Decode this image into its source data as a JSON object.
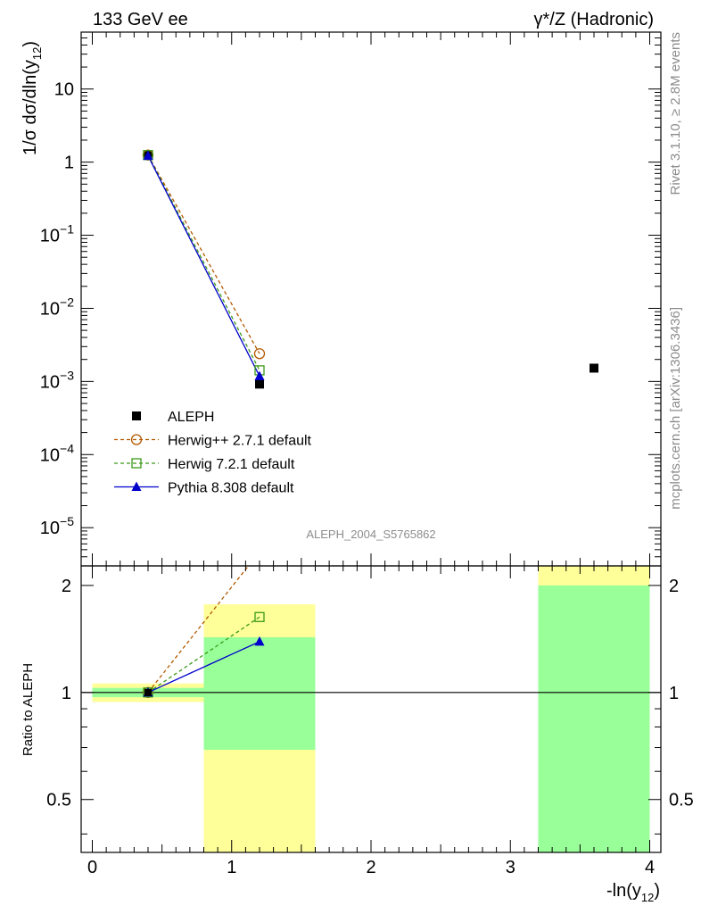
{
  "header": {
    "left": "133 GeV ee",
    "right": "γ*/Z (Hadronic)"
  },
  "side": {
    "rivet": "Rivet 3.1.10, ≥ 2.8M events",
    "mcplots": "mcplots.cern.ch [arXiv:1306.3436]"
  },
  "analysis_id": "ALEPH_2004_S5765862",
  "colors": {
    "aleph": "#000000",
    "herwigpp": "#b35900",
    "herwig7": "#3a9a1a",
    "pythia": "#0000cc",
    "band_inner": "#99ff99",
    "band_outer": "#ffff99"
  },
  "chart_data": [
    {
      "type": "scatter",
      "panel": "main",
      "ylabel": "1/σ  dσ/dln(y12)",
      "yscale": "log",
      "ylim": [
        3e-06,
        60
      ],
      "xlim": [
        -0.08,
        4.08
      ],
      "yticks": [
        "10",
        "1",
        "10^-1",
        "10^-2",
        "10^-3",
        "10^-4",
        "10^-5"
      ],
      "legend_position": "lower-left",
      "series": [
        {
          "name": "ALEPH",
          "style": "square-filled",
          "x": [
            0.4,
            1.2,
            3.6
          ],
          "y": [
            1.25,
            0.00092,
            0.00152
          ]
        },
        {
          "name": "Herwig++ 2.7.1 default",
          "style": "circle-open-dashed",
          "x": [
            0.4,
            1.2
          ],
          "y": [
            1.25,
            0.0024
          ]
        },
        {
          "name": "Herwig 7.2.1 default",
          "style": "square-open-dashed",
          "x": [
            0.4,
            1.2
          ],
          "y": [
            1.25,
            0.00142
          ]
        },
        {
          "name": "Pythia 8.308 default",
          "style": "triangle-filled-solid",
          "x": [
            0.4,
            1.2
          ],
          "y": [
            1.22,
            0.00118
          ]
        }
      ]
    },
    {
      "type": "line",
      "panel": "ratio",
      "ylabel": "Ratio to ALEPH",
      "xlabel": "-ln(y12)",
      "yscale": "log",
      "ylim": [
        0.355,
        2.27
      ],
      "xlim": [
        -0.08,
        4.08
      ],
      "yticks": [
        0.5,
        1,
        2
      ],
      "xticks": [
        0,
        1,
        2,
        3,
        4
      ],
      "bands": [
        {
          "x0": 0.0,
          "x1": 0.8,
          "inner": [
            0.97,
            1.03
          ],
          "outer": [
            0.94,
            1.06
          ]
        },
        {
          "x0": 0.8,
          "x1": 1.6,
          "inner": [
            0.69,
            1.43
          ],
          "outer": [
            0.355,
            1.77
          ]
        },
        {
          "x0": 3.2,
          "x1": 4.0,
          "inner": [
            0.355,
            2.0
          ],
          "outer": [
            0.355,
            2.27
          ]
        }
      ],
      "series": [
        {
          "name": "Herwig++ 2.7.1 default",
          "x": [
            0.4,
            1.12
          ],
          "y": [
            1.0,
            2.27
          ]
        },
        {
          "name": "Herwig 7.2.1 default",
          "x": [
            0.4,
            1.2
          ],
          "y": [
            1.0,
            1.63
          ]
        },
        {
          "name": "Pythia 8.308 default",
          "x": [
            0.4,
            1.2
          ],
          "y": [
            1.0,
            1.39
          ]
        }
      ]
    }
  ]
}
